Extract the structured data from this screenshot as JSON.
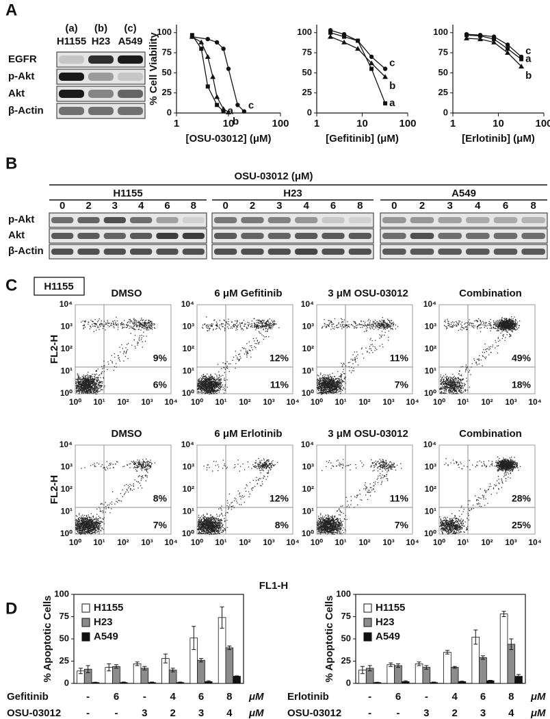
{
  "panel_labels": [
    "A",
    "B",
    "C",
    "D"
  ],
  "blot_a": {
    "columns": [
      {
        "letter": "(a)",
        "name": "H1155"
      },
      {
        "letter": "(b)",
        "name": "H23"
      },
      {
        "letter": "(c)",
        "name": "A549"
      }
    ],
    "rows": [
      "EGFR",
      "p-Akt",
      "Akt",
      "β-Actin"
    ]
  },
  "chart_data": [
    {
      "type": "line",
      "xscale": "log",
      "xlabel": "[OSU-03012] (μM)",
      "ylabel": "% Cell Viability",
      "xlim": [
        1,
        100
      ],
      "xticks": [
        1,
        10,
        100
      ],
      "ylim": [
        0,
        110
      ],
      "yticks": [
        0,
        25,
        50,
        75,
        100
      ],
      "series": [
        {
          "name": "a",
          "color": "#111111",
          "marker": "square",
          "x": [
            2,
            3,
            4,
            6,
            8
          ],
          "values": [
            97,
            80,
            33,
            10,
            2
          ]
        },
        {
          "name": "b",
          "color": "#111111",
          "marker": "triangle",
          "x": [
            2,
            3,
            4,
            5,
            6,
            8,
            10
          ],
          "values": [
            95,
            88,
            70,
            45,
            20,
            5,
            1
          ]
        },
        {
          "name": "c",
          "color": "#111111",
          "marker": "circle",
          "x": [
            2,
            4,
            6,
            8,
            10,
            15,
            20
          ],
          "values": [
            95,
            92,
            88,
            80,
            55,
            10,
            2
          ]
        }
      ]
    },
    {
      "type": "line",
      "xscale": "log",
      "xlabel": "[Gefitinib] (μM)",
      "xlim": [
        1,
        100
      ],
      "xticks": [
        1,
        10,
        100
      ],
      "ylim": [
        0,
        110
      ],
      "yticks": [
        0,
        25,
        50,
        75,
        100
      ],
      "series": [
        {
          "name": "a",
          "color": "#111111",
          "marker": "square",
          "x": [
            2,
            4,
            8,
            16,
            32
          ],
          "values": [
            100,
            95,
            90,
            55,
            12
          ]
        },
        {
          "name": "b",
          "color": "#111111",
          "marker": "triangle",
          "x": [
            2,
            4,
            8,
            16,
            32
          ],
          "values": [
            95,
            88,
            80,
            62,
            45
          ]
        },
        {
          "name": "c",
          "color": "#111111",
          "marker": "circle",
          "x": [
            2,
            4,
            8,
            16,
            32
          ],
          "values": [
            103,
            98,
            90,
            70,
            55
          ]
        }
      ]
    },
    {
      "type": "line",
      "xscale": "log",
      "xlabel": "[Erlotinib] (μM)",
      "xlim": [
        1,
        100
      ],
      "xticks": [
        1,
        10,
        100
      ],
      "ylim": [
        0,
        110
      ],
      "yticks": [
        0,
        25,
        50,
        75,
        100
      ],
      "series": [
        {
          "name": "a",
          "color": "#111111",
          "marker": "square",
          "x": [
            2,
            4,
            8,
            16,
            32
          ],
          "values": [
            97,
            96,
            92,
            80,
            67
          ]
        },
        {
          "name": "b",
          "color": "#111111",
          "marker": "triangle",
          "x": [
            2,
            4,
            8,
            16,
            32
          ],
          "values": [
            93,
            92,
            88,
            75,
            58
          ]
        },
        {
          "name": "c",
          "color": "#111111",
          "marker": "circle",
          "x": [
            2,
            4,
            8,
            16,
            32
          ],
          "values": [
            98,
            97,
            95,
            85,
            70
          ]
        }
      ]
    },
    {
      "type": "bar",
      "ylabel": "% Apoptotic Cells",
      "ylim": [
        0,
        100
      ],
      "yticks": [
        0,
        25,
        50,
        75,
        100
      ],
      "legend": "upper left",
      "treatment_rows": [
        {
          "name": "Gefitinib",
          "doses": [
            "-",
            "6",
            "-",
            "4",
            "6",
            "8"
          ]
        },
        {
          "name": "OSU-03012",
          "doses": [
            "-",
            "-",
            "3",
            "2",
            "3",
            "4"
          ]
        }
      ],
      "unit": "μM",
      "series": [
        {
          "name": "H1155",
          "color": "#ffffff",
          "values": [
            14,
            18,
            22,
            28,
            51,
            74
          ],
          "errors": [
            3,
            4,
            2,
            5,
            13,
            12
          ]
        },
        {
          "name": "H23",
          "color": "#8c8c8c",
          "values": [
            16,
            19,
            17,
            15,
            26,
            40
          ],
          "errors": [
            4,
            2,
            2,
            2,
            2,
            2
          ]
        },
        {
          "name": "A549",
          "color": "#111111",
          "values": [
            1,
            1,
            1,
            1,
            2,
            8
          ],
          "errors": [
            0.3,
            0.5,
            0.5,
            0.5,
            1,
            0.5
          ]
        }
      ]
    },
    {
      "type": "bar",
      "ylabel": "% Apoptotic Cells",
      "ylim": [
        0,
        100
      ],
      "yticks": [
        0,
        25,
        50,
        75,
        100
      ],
      "legend": "upper left",
      "treatment_rows": [
        {
          "name": "Erlotinib",
          "doses": [
            "-",
            "6",
            "-",
            "4",
            "6",
            "8"
          ]
        },
        {
          "name": "OSU-03012",
          "doses": [
            "-",
            "-",
            "3",
            "2",
            "3",
            "4"
          ]
        }
      ],
      "unit": "μM",
      "series": [
        {
          "name": "H1155",
          "color": "#ffffff",
          "values": [
            15,
            21,
            22,
            35,
            52,
            78
          ],
          "errors": [
            4,
            2,
            2,
            2,
            8,
            3
          ]
        },
        {
          "name": "H23",
          "color": "#8c8c8c",
          "values": [
            17,
            20,
            18,
            18,
            29,
            44
          ],
          "errors": [
            3,
            2,
            2,
            1,
            2,
            6
          ]
        },
        {
          "name": "A549",
          "color": "#111111",
          "values": [
            1,
            2,
            1,
            2,
            3,
            8
          ],
          "errors": [
            0.3,
            1,
            0.5,
            0.5,
            0.5,
            2
          ]
        }
      ]
    }
  ],
  "blot_b": {
    "title": "OSU-03012 (μM)",
    "groups": [
      "H1155",
      "H23",
      "A549"
    ],
    "doses": [
      "0",
      "2",
      "3",
      "4",
      "6",
      "8"
    ],
    "rows": [
      "p-Akt",
      "Akt",
      "β-Actin"
    ]
  },
  "flow": {
    "cell_label": "H1155",
    "ylabel": "FL2-H",
    "xlabel": "FL1-H",
    "axis_ticks": [
      "10⁰",
      "10¹",
      "10²",
      "10³",
      "10⁴"
    ],
    "rows": [
      [
        {
          "title": "DMSO",
          "upper": "9%",
          "lower": "6%"
        },
        {
          "title": "6 μM Gefitinib",
          "upper": "12%",
          "lower": "11%"
        },
        {
          "title": "3 μM OSU-03012",
          "upper": "11%",
          "lower": "7%"
        },
        {
          "title": "Combination",
          "upper": "49%",
          "lower": "18%"
        }
      ],
      [
        {
          "title": "DMSO",
          "upper": "8%",
          "lower": "7%"
        },
        {
          "title": "6 μM Erlotinib",
          "upper": "12%",
          "lower": "8%"
        },
        {
          "title": "3 μM OSU-03012",
          "upper": "11%",
          "lower": "7%"
        },
        {
          "title": "Combination",
          "upper": "28%",
          "lower": "25%"
        }
      ]
    ]
  }
}
